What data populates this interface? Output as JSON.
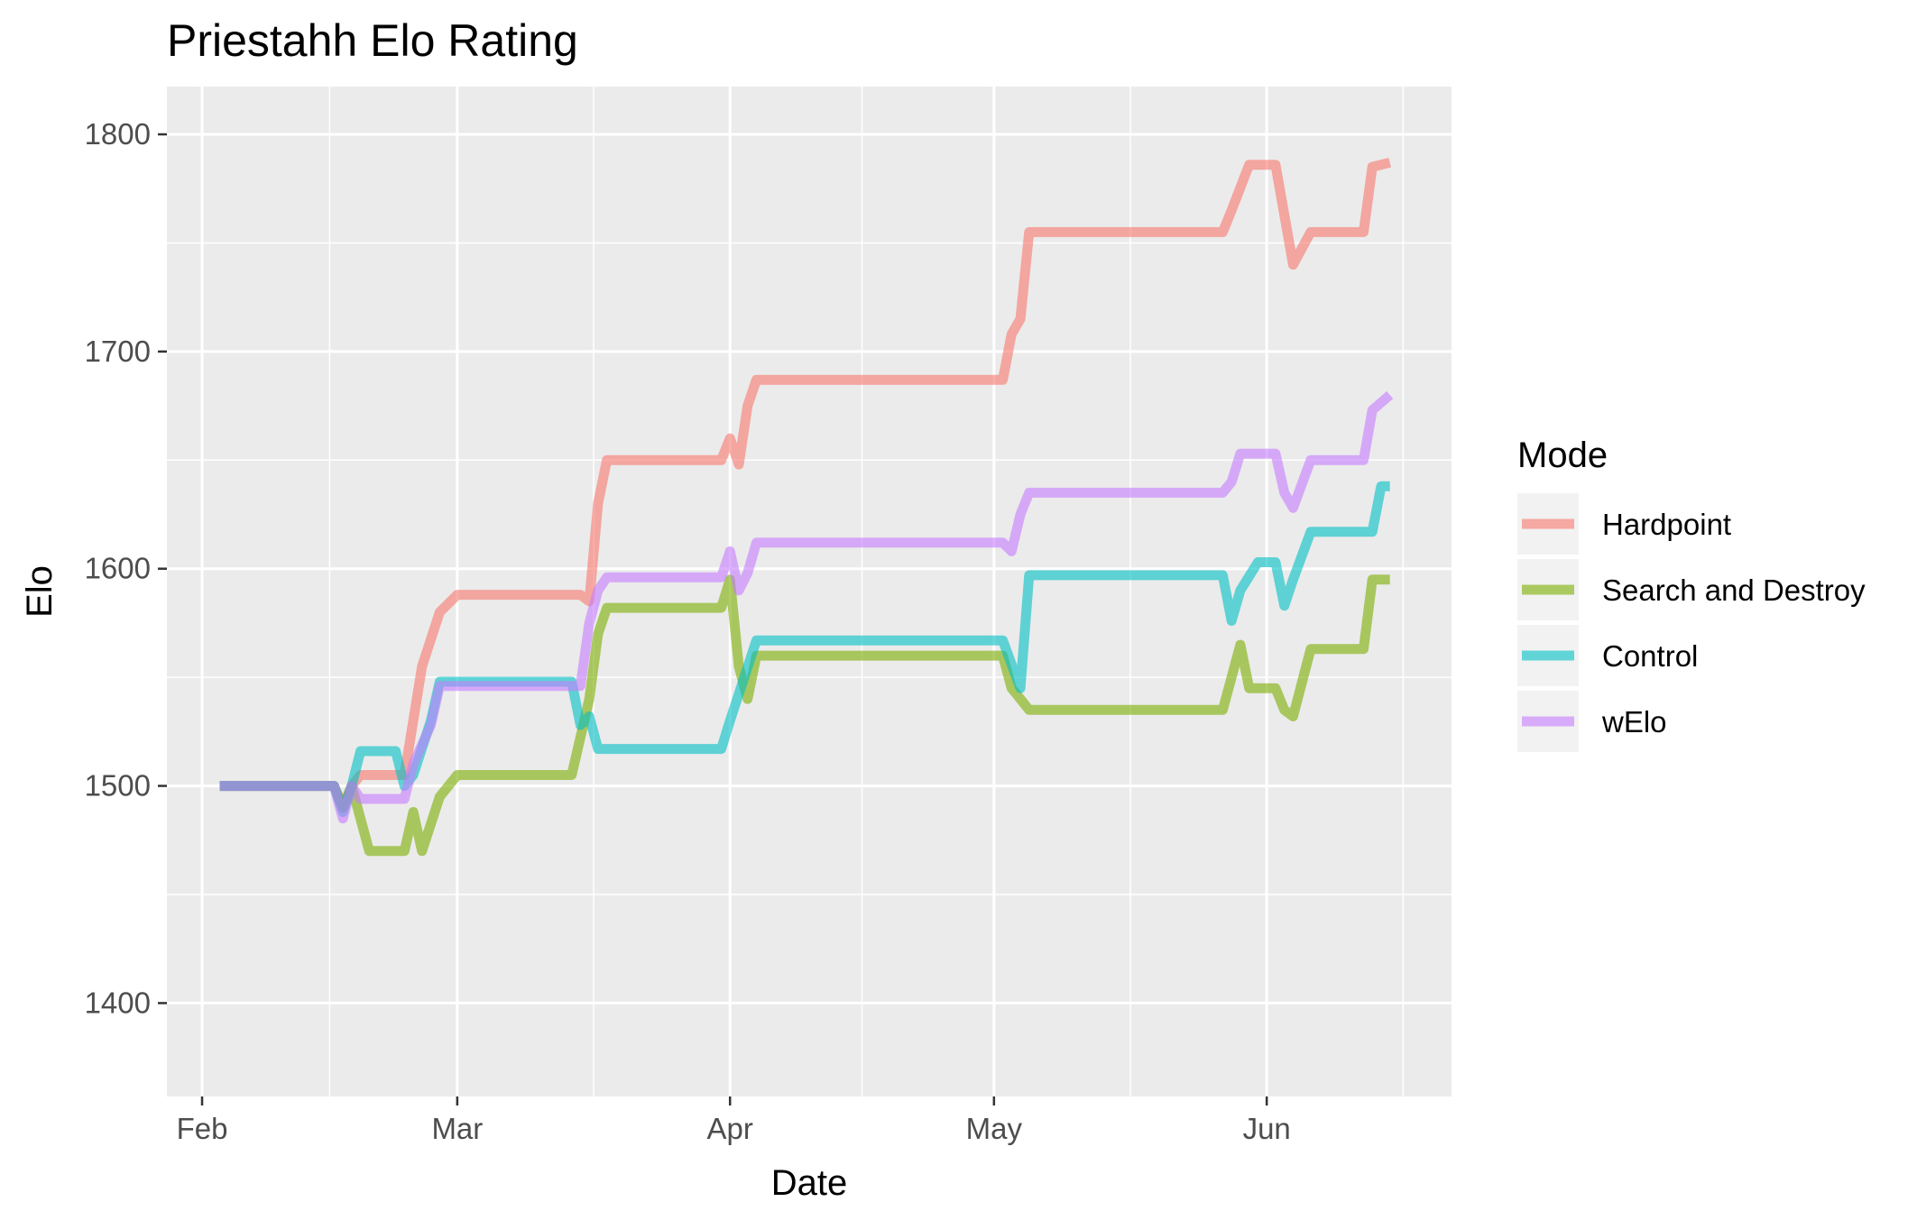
{
  "chart_data": {
    "type": "line",
    "title": "Priestahh Elo Rating",
    "xlabel": "Date",
    "ylabel": "Elo",
    "x_ticks": [
      "Feb",
      "Mar",
      "Apr",
      "May",
      "Jun"
    ],
    "x_tick_dates": [
      "2020-02-01",
      "2020-03-01",
      "2020-04-01",
      "2020-05-01",
      "2020-06-01"
    ],
    "y_ticks": [
      1400,
      1500,
      1600,
      1700,
      1800
    ],
    "ylim": [
      1357,
      1822
    ],
    "xlim": [
      "2020-01-28",
      "2020-06-22"
    ],
    "grid": true,
    "legend": {
      "title": "Mode",
      "placement": "right",
      "entries": [
        "Hardpoint",
        "Search and Destroy",
        "Control",
        "wElo"
      ]
    },
    "series": [
      {
        "name": "Hardpoint",
        "color": "#F8766D",
        "points": [
          [
            "2020-02-03",
            1500
          ],
          [
            "2020-02-16",
            1500
          ],
          [
            "2020-02-17",
            1490
          ],
          [
            "2020-02-18",
            1500
          ],
          [
            "2020-02-19",
            1505
          ],
          [
            "2020-02-24",
            1505
          ],
          [
            "2020-02-25",
            1530
          ],
          [
            "2020-02-26",
            1555
          ],
          [
            "2020-02-28",
            1580
          ],
          [
            "2020-03-01",
            1588
          ],
          [
            "2020-03-15",
            1588
          ],
          [
            "2020-03-16",
            1585
          ],
          [
            "2020-03-17",
            1630
          ],
          [
            "2020-03-18",
            1650
          ],
          [
            "2020-03-31",
            1650
          ],
          [
            "2020-04-01",
            1660
          ],
          [
            "2020-04-02",
            1648
          ],
          [
            "2020-04-03",
            1675
          ],
          [
            "2020-04-04",
            1687
          ],
          [
            "2020-05-02",
            1687
          ],
          [
            "2020-05-03",
            1708
          ],
          [
            "2020-05-04",
            1715
          ],
          [
            "2020-05-05",
            1755
          ],
          [
            "2020-05-27",
            1755
          ],
          [
            "2020-05-28",
            1765
          ],
          [
            "2020-05-30",
            1786
          ],
          [
            "2020-06-02",
            1786
          ],
          [
            "2020-06-04",
            1740
          ],
          [
            "2020-06-06",
            1755
          ],
          [
            "2020-06-12",
            1755
          ],
          [
            "2020-06-13",
            1785
          ],
          [
            "2020-06-15",
            1787
          ]
        ]
      },
      {
        "name": "Search and Destroy",
        "color": "#7CAE00",
        "points": [
          [
            "2020-02-03",
            1500
          ],
          [
            "2020-02-16",
            1500
          ],
          [
            "2020-02-17",
            1490
          ],
          [
            "2020-02-18",
            1500
          ],
          [
            "2020-02-20",
            1470
          ],
          [
            "2020-02-24",
            1470
          ],
          [
            "2020-02-25",
            1488
          ],
          [
            "2020-02-26",
            1470
          ],
          [
            "2020-02-28",
            1495
          ],
          [
            "2020-03-01",
            1505
          ],
          [
            "2020-03-14",
            1505
          ],
          [
            "2020-03-16",
            1540
          ],
          [
            "2020-03-17",
            1570
          ],
          [
            "2020-03-18",
            1582
          ],
          [
            "2020-03-31",
            1582
          ],
          [
            "2020-04-01",
            1595
          ],
          [
            "2020-04-02",
            1555
          ],
          [
            "2020-04-03",
            1540
          ],
          [
            "2020-04-04",
            1560
          ],
          [
            "2020-05-02",
            1560
          ],
          [
            "2020-05-03",
            1545
          ],
          [
            "2020-05-04",
            1540
          ],
          [
            "2020-05-05",
            1535
          ],
          [
            "2020-05-27",
            1535
          ],
          [
            "2020-05-28",
            1550
          ],
          [
            "2020-05-29",
            1565
          ],
          [
            "2020-05-30",
            1545
          ],
          [
            "2020-06-02",
            1545
          ],
          [
            "2020-06-03",
            1535
          ],
          [
            "2020-06-04",
            1532
          ],
          [
            "2020-06-06",
            1563
          ],
          [
            "2020-06-12",
            1563
          ],
          [
            "2020-06-13",
            1595
          ],
          [
            "2020-06-15",
            1595
          ]
        ]
      },
      {
        "name": "Control",
        "color": "#00BFC4",
        "points": [
          [
            "2020-02-03",
            1500
          ],
          [
            "2020-02-16",
            1500
          ],
          [
            "2020-02-17",
            1488
          ],
          [
            "2020-02-18",
            1500
          ],
          [
            "2020-02-19",
            1516
          ],
          [
            "2020-02-23",
            1516
          ],
          [
            "2020-02-24",
            1500
          ],
          [
            "2020-02-25",
            1505
          ],
          [
            "2020-02-27",
            1530
          ],
          [
            "2020-02-28",
            1548
          ],
          [
            "2020-03-14",
            1548
          ],
          [
            "2020-03-15",
            1528
          ],
          [
            "2020-03-16",
            1532
          ],
          [
            "2020-03-17",
            1517
          ],
          [
            "2020-03-31",
            1517
          ],
          [
            "2020-04-01",
            1530
          ],
          [
            "2020-04-04",
            1567
          ],
          [
            "2020-05-02",
            1567
          ],
          [
            "2020-05-03",
            1556
          ],
          [
            "2020-05-04",
            1545
          ],
          [
            "2020-05-05",
            1597
          ],
          [
            "2020-05-27",
            1597
          ],
          [
            "2020-05-28",
            1576
          ],
          [
            "2020-05-29",
            1590
          ],
          [
            "2020-05-31",
            1603
          ],
          [
            "2020-06-02",
            1603
          ],
          [
            "2020-06-03",
            1583
          ],
          [
            "2020-06-04",
            1595
          ],
          [
            "2020-06-06",
            1617
          ],
          [
            "2020-06-13",
            1617
          ],
          [
            "2020-06-14",
            1638
          ],
          [
            "2020-06-15",
            1638
          ]
        ]
      },
      {
        "name": "wElo",
        "color": "#C77CFF",
        "points": [
          [
            "2020-02-03",
            1500
          ],
          [
            "2020-02-16",
            1500
          ],
          [
            "2020-02-17",
            1485
          ],
          [
            "2020-02-18",
            1500
          ],
          [
            "2020-02-19",
            1494
          ],
          [
            "2020-02-24",
            1494
          ],
          [
            "2020-02-25",
            1510
          ],
          [
            "2020-02-27",
            1528
          ],
          [
            "2020-02-28",
            1546
          ],
          [
            "2020-03-15",
            1546
          ],
          [
            "2020-03-16",
            1575
          ],
          [
            "2020-03-17",
            1590
          ],
          [
            "2020-03-18",
            1596
          ],
          [
            "2020-03-31",
            1596
          ],
          [
            "2020-04-01",
            1608
          ],
          [
            "2020-04-02",
            1590
          ],
          [
            "2020-04-03",
            1598
          ],
          [
            "2020-04-04",
            1612
          ],
          [
            "2020-05-02",
            1612
          ],
          [
            "2020-05-03",
            1608
          ],
          [
            "2020-05-04",
            1625
          ],
          [
            "2020-05-05",
            1635
          ],
          [
            "2020-05-27",
            1635
          ],
          [
            "2020-05-28",
            1640
          ],
          [
            "2020-05-29",
            1653
          ],
          [
            "2020-06-02",
            1653
          ],
          [
            "2020-06-03",
            1635
          ],
          [
            "2020-06-04",
            1628
          ],
          [
            "2020-06-06",
            1650
          ],
          [
            "2020-06-12",
            1650
          ],
          [
            "2020-06-13",
            1673
          ],
          [
            "2020-06-15",
            1680
          ]
        ]
      }
    ]
  }
}
